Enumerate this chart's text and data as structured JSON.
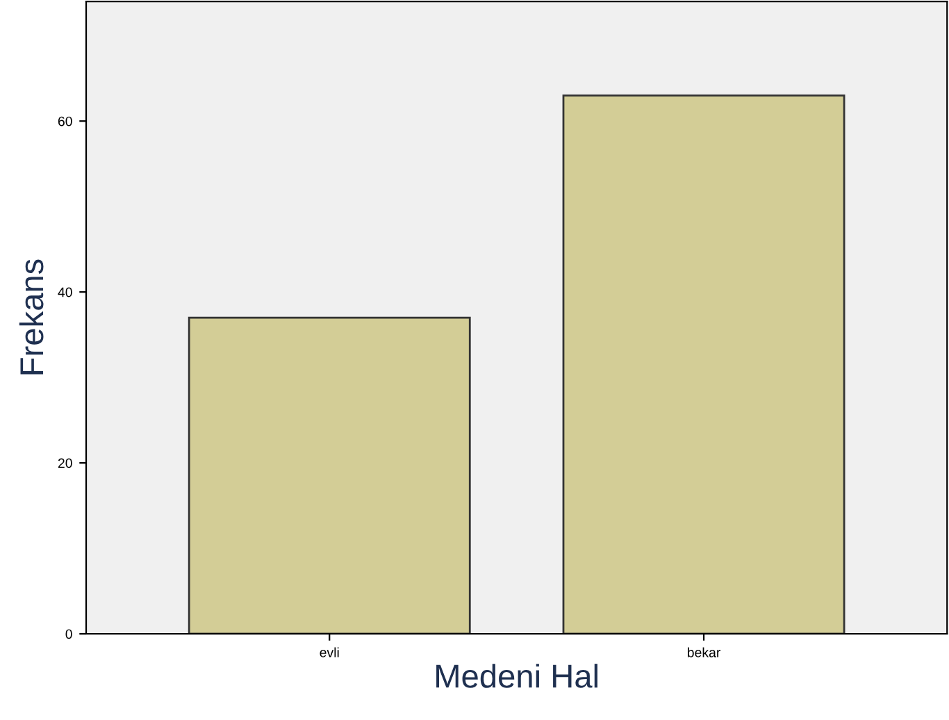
{
  "chart_data": {
    "type": "bar",
    "xlabel": "Medeni Hal",
    "ylabel": "Frekans",
    "categories": [
      "evli",
      "bekar"
    ],
    "values": [
      37,
      63
    ],
    "color": "#d3cd96",
    "ylim": [
      0,
      74
    ],
    "yticks": [
      0,
      20,
      40,
      60
    ],
    "grid": false
  }
}
